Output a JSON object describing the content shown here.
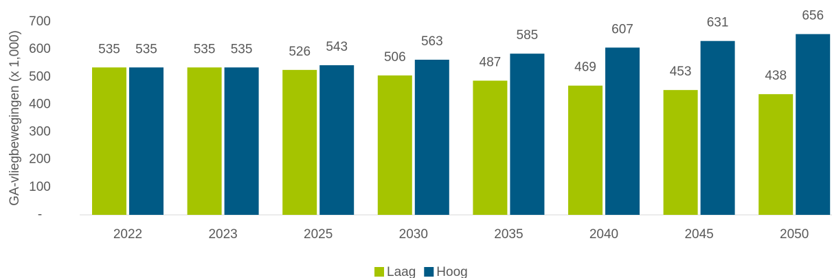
{
  "chart_data": {
    "type": "bar",
    "y_label": "GA-vliegbewegingen (x 1,000)",
    "categories": [
      "2022",
      "2023",
      "2025",
      "2030",
      "2035",
      "2040",
      "2045",
      "2050"
    ],
    "series": [
      {
        "name": "Laag",
        "color": "#a5c400",
        "values": [
          535,
          535,
          526,
          506,
          487,
          469,
          453,
          438
        ]
      },
      {
        "name": "Hoog",
        "color": "#005a85",
        "values": [
          535,
          535,
          543,
          563,
          585,
          607,
          631,
          656
        ]
      }
    ],
    "ylim": [
      0,
      700
    ],
    "yticks": [
      {
        "value": 0,
        "label": "-"
      },
      100,
      200,
      300,
      400,
      500,
      600,
      700
    ],
    "legend": "bottom"
  }
}
